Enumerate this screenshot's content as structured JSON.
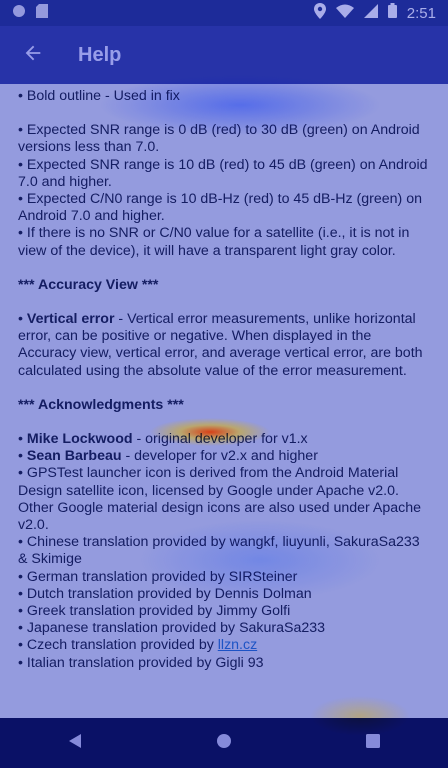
{
  "status_bar": {
    "time": "2:51",
    "icons": [
      "circle-icon",
      "sd-card-icon",
      "location-icon",
      "wifi-icon",
      "signal-icon",
      "battery-icon"
    ]
  },
  "app_bar": {
    "back_icon": "arrow-left-icon",
    "title": "Help"
  },
  "content": {
    "partial_top_line": "• Bold outline - Used in fix",
    "snr_block": [
      "• Expected SNR range is 0 dB (red) to 30 dB (green) on Android versions less than 7.0.",
      "• Expected SNR range is 10 dB (red) to 45 dB (green) on Android 7.0 and higher.",
      "• Expected C/N0 range is 10 dB-Hz (red) to 45 dB-Hz (green) on Android 7.0 and higher.",
      "• If there is no SNR or C/N0 value for a satellite (i.e., it is not in view of the device), it will have a transparent light gray color."
    ],
    "accuracy_title": "*** Accuracy View ***",
    "accuracy_term": "Vertical error",
    "accuracy_text": " - Vertical error measurements, unlike horizontal error, can be positive or negative. When displayed in the Accuracy view, vertical error, and average vertical error, are both calculated using the absolute value of the error measurement.",
    "ack_title": "*** Acknowledgments ***",
    "ack_items": [
      {
        "bold": "Mike Lockwood",
        "text": " - original developer for v1.x"
      },
      {
        "bold": "Sean Barbeau",
        "text": " - developer for v2.x and higher"
      },
      {
        "bold": "",
        "text": "GPSTest launcher icon is derived from the Android Material Design satellite icon, licensed by Google under Apache v2.0. Other Google material design icons are also used under Apache v2.0."
      },
      {
        "bold": "",
        "text": "Chinese translation provided by wangkf, liuyunli, SakuraSa233 & Skimige"
      },
      {
        "bold": "",
        "text": "German translation provided by SIRSteiner"
      },
      {
        "bold": "",
        "text": "Dutch translation provided by Dennis Dolman"
      },
      {
        "bold": "",
        "text": "Greek translation provided by Jimmy Golfi"
      },
      {
        "bold": "",
        "text": "Japanese translation provided by SakuraSa233"
      }
    ],
    "czech_prefix": "• Czech translation provided by ",
    "czech_link": "llzn.cz",
    "partial_bottom_line": "• Italian translation provided by Gigli 93"
  },
  "nav_bar": {
    "back_icon": "nav-back-icon",
    "home_icon": "nav-home-icon",
    "recents_icon": "nav-recents-icon"
  }
}
